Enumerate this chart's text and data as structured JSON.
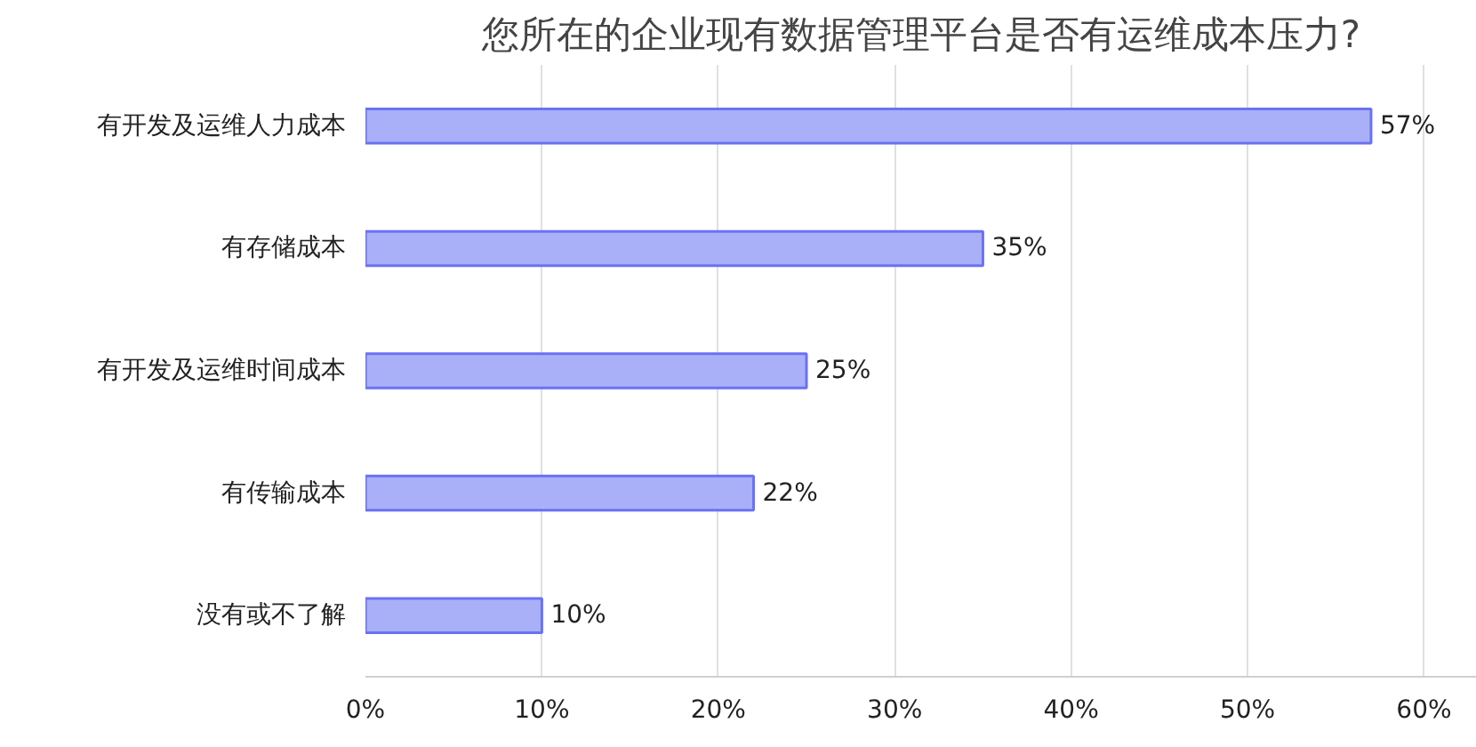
{
  "chart_data": {
    "type": "bar",
    "orientation": "horizontal",
    "title": "您所在的企业现有数据管理平台是否有运维成本压力?",
    "categories": [
      "有开发及运维人力成本",
      "有存储成本",
      "有开发及运维时间成本",
      "有传输成本",
      "没有或不了解"
    ],
    "values": [
      57,
      35,
      25,
      22,
      10
    ],
    "color": "#aab0f8",
    "value_labels": [
      "57%",
      "35%",
      "25%",
      "22%",
      "10%"
    ],
    "xlim": [
      0,
      63
    ],
    "xticks": [
      {
        "value": 0,
        "label": "0%"
      },
      {
        "value": 10,
        "label": "10%"
      },
      {
        "value": 20,
        "label": "20%"
      },
      {
        "value": 30,
        "label": "30%"
      },
      {
        "value": 40,
        "label": "40%"
      },
      {
        "value": 50,
        "label": "50%"
      },
      {
        "value": 60,
        "label": "60%"
      }
    ],
    "grid": "x"
  }
}
